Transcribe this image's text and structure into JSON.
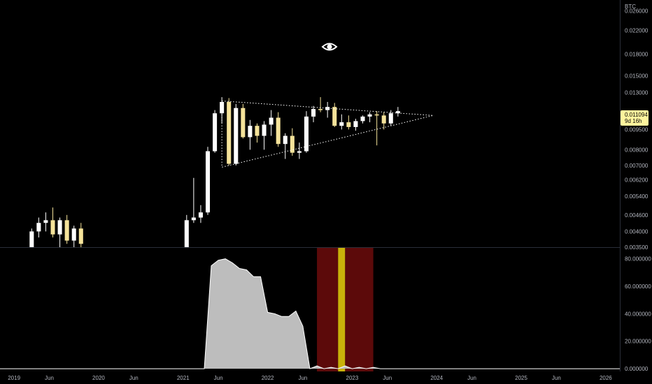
{
  "symbol_unit": "BTC",
  "colors": {
    "background": "#000000",
    "candle_up": "#ffffff",
    "candle_down": "#f5e39a",
    "triangle": "#ffffff",
    "price_badge_bg": "#fff59d",
    "price_badge_text": "#000000",
    "osc_fill": "#bdbdbd",
    "band_red": "#5c0a0a",
    "band_yellow": "#c9b20a"
  },
  "chart_data": [
    {
      "type": "candlestick",
      "ylabel": "BTC",
      "scale": "log",
      "y_ticks": [
        "0.026000",
        "0.022000",
        "0.018000",
        "0.015000",
        "0.013000",
        "0.009500",
        "0.008000",
        "0.007000",
        "0.006200",
        "0.005400",
        "0.004600",
        "0.004000",
        "0.003500"
      ],
      "y_tick_values": [
        0.026,
        0.022,
        0.018,
        0.015,
        0.013,
        0.0095,
        0.008,
        0.007,
        0.0062,
        0.0054,
        0.0046,
        0.004,
        0.0035
      ],
      "ylim": [
        0.0035,
        0.0285
      ],
      "last_price": "0.011094",
      "countdown": "9d 16h",
      "x_ticks": [
        "2019",
        "Jun",
        "2020",
        "Jun",
        "2021",
        "Jun",
        "2022",
        "Jun",
        "2023",
        "Jun",
        "2024",
        "Jun",
        "2025",
        "Jun",
        "2026"
      ],
      "x_tick_dates": [
        "2019-01",
        "2019-06",
        "2020-01",
        "2020-06",
        "2021-01",
        "2021-06",
        "2022-01",
        "2022-06",
        "2023-01",
        "2023-06",
        "2024-01",
        "2024-06",
        "2025-01",
        "2025-06",
        "2026-01"
      ],
      "xlim": [
        "2018-11",
        "2026-03"
      ],
      "candles": [
        {
          "t": "2019-03",
          "o": 0.0035,
          "h": 0.0041,
          "l": 0.0035,
          "c": 0.004
        },
        {
          "t": "2019-04",
          "o": 0.004,
          "h": 0.0045,
          "l": 0.0038,
          "c": 0.0043
        },
        {
          "t": "2019-05",
          "o": 0.0043,
          "h": 0.0047,
          "l": 0.004,
          "c": 0.0044
        },
        {
          "t": "2019-06",
          "o": 0.0044,
          "h": 0.0049,
          "l": 0.0038,
          "c": 0.0039
        },
        {
          "t": "2019-07",
          "o": 0.0039,
          "h": 0.0045,
          "l": 0.0035,
          "c": 0.0044
        },
        {
          "t": "2019-08",
          "o": 0.0044,
          "h": 0.0046,
          "l": 0.0036,
          "c": 0.0037
        },
        {
          "t": "2019-09",
          "o": 0.0037,
          "h": 0.0042,
          "l": 0.0035,
          "c": 0.0041
        },
        {
          "t": "2019-10",
          "o": 0.0041,
          "h": 0.0043,
          "l": 0.0035,
          "c": 0.0036
        },
        {
          "t": "2021-01",
          "o": 0.0035,
          "h": 0.0046,
          "l": 0.0035,
          "c": 0.0044
        },
        {
          "t": "2021-02",
          "o": 0.0044,
          "h": 0.0063,
          "l": 0.0043,
          "c": 0.0045
        },
        {
          "t": "2021-03",
          "o": 0.0045,
          "h": 0.005,
          "l": 0.0043,
          "c": 0.0047
        },
        {
          "t": "2021-04",
          "o": 0.0047,
          "h": 0.0082,
          "l": 0.0046,
          "c": 0.0079
        },
        {
          "t": "2021-05",
          "o": 0.0079,
          "h": 0.0112,
          "l": 0.0078,
          "c": 0.0109
        },
        {
          "t": "2021-06",
          "o": 0.0109,
          "h": 0.0125,
          "l": 0.01,
          "c": 0.012
        },
        {
          "t": "2021-07",
          "o": 0.012,
          "h": 0.0124,
          "l": 0.007,
          "c": 0.0071
        },
        {
          "t": "2021-08",
          "o": 0.0071,
          "h": 0.0118,
          "l": 0.007,
          "c": 0.0114
        },
        {
          "t": "2021-09",
          "o": 0.0114,
          "h": 0.0118,
          "l": 0.0088,
          "c": 0.0089
        },
        {
          "t": "2021-10",
          "o": 0.0089,
          "h": 0.0103,
          "l": 0.008,
          "c": 0.0098
        },
        {
          "t": "2021-11",
          "o": 0.0098,
          "h": 0.01,
          "l": 0.0085,
          "c": 0.009
        },
        {
          "t": "2021-12",
          "o": 0.009,
          "h": 0.0102,
          "l": 0.008,
          "c": 0.0099
        },
        {
          "t": "2022-01",
          "o": 0.0099,
          "h": 0.0112,
          "l": 0.009,
          "c": 0.0105
        },
        {
          "t": "2022-02",
          "o": 0.0105,
          "h": 0.011,
          "l": 0.0082,
          "c": 0.0084
        },
        {
          "t": "2022-03",
          "o": 0.0084,
          "h": 0.0092,
          "l": 0.0074,
          "c": 0.009
        },
        {
          "t": "2022-04",
          "o": 0.009,
          "h": 0.0096,
          "l": 0.0076,
          "c": 0.0078
        },
        {
          "t": "2022-05",
          "o": 0.0078,
          "h": 0.0085,
          "l": 0.0074,
          "c": 0.0079
        },
        {
          "t": "2022-06",
          "o": 0.0079,
          "h": 0.0111,
          "l": 0.0078,
          "c": 0.0106
        },
        {
          "t": "2022-07",
          "o": 0.0106,
          "h": 0.0116,
          "l": 0.0101,
          "c": 0.0113
        },
        {
          "t": "2022-08",
          "o": 0.0113,
          "h": 0.0125,
          "l": 0.011,
          "c": 0.0112
        },
        {
          "t": "2022-09",
          "o": 0.0112,
          "h": 0.012,
          "l": 0.0105,
          "c": 0.0115
        },
        {
          "t": "2022-10",
          "o": 0.0115,
          "h": 0.0119,
          "l": 0.0097,
          "c": 0.0098
        },
        {
          "t": "2022-11",
          "o": 0.0098,
          "h": 0.0108,
          "l": 0.0095,
          "c": 0.0101
        },
        {
          "t": "2022-12",
          "o": 0.0101,
          "h": 0.0107,
          "l": 0.0095,
          "c": 0.0097
        },
        {
          "t": "2023-01",
          "o": 0.0097,
          "h": 0.0104,
          "l": 0.0094,
          "c": 0.0102
        },
        {
          "t": "2023-02",
          "o": 0.0102,
          "h": 0.0107,
          "l": 0.01,
          "c": 0.0106
        },
        {
          "t": "2023-03",
          "o": 0.0106,
          "h": 0.011,
          "l": 0.0101,
          "c": 0.0108
        },
        {
          "t": "2023-04",
          "o": 0.0108,
          "h": 0.0111,
          "l": 0.0083,
          "c": 0.0107
        },
        {
          "t": "2023-05",
          "o": 0.0107,
          "h": 0.011,
          "l": 0.0095,
          "c": 0.01
        },
        {
          "t": "2023-06",
          "o": 0.01,
          "h": 0.0112,
          "l": 0.0098,
          "c": 0.0109
        },
        {
          "t": "2023-07",
          "o": 0.0109,
          "h": 0.0115,
          "l": 0.0106,
          "c": 0.0111
        }
      ],
      "triangle": [
        {
          "t": "2021-06",
          "p": 0.0121
        },
        {
          "t": "2023-12",
          "p": 0.0107
        },
        {
          "t": "2021-06",
          "p": 0.0069
        }
      ]
    },
    {
      "type": "area",
      "y_ticks": [
        "80.000000",
        "60.000000",
        "40.000000",
        "20.000000",
        "0.000000"
      ],
      "y_tick_values": [
        80,
        60,
        40,
        20,
        0
      ],
      "ylim": [
        -2,
        88
      ],
      "points": [
        {
          "t": "2018-11",
          "v": 0
        },
        {
          "t": "2021-04",
          "v": 0
        },
        {
          "t": "2021-05",
          "v": 75
        },
        {
          "t": "2021-06",
          "v": 79
        },
        {
          "t": "2021-07",
          "v": 80
        },
        {
          "t": "2021-08",
          "v": 77
        },
        {
          "t": "2021-09",
          "v": 73
        },
        {
          "t": "2021-10",
          "v": 72
        },
        {
          "t": "2021-11",
          "v": 67
        },
        {
          "t": "2021-12",
          "v": 67
        },
        {
          "t": "2022-01",
          "v": 41
        },
        {
          "t": "2022-02",
          "v": 40
        },
        {
          "t": "2022-03",
          "v": 38
        },
        {
          "t": "2022-04",
          "v": 38
        },
        {
          "t": "2022-05",
          "v": 42
        },
        {
          "t": "2022-06",
          "v": 31
        },
        {
          "t": "2022-07",
          "v": 0
        },
        {
          "t": "2022-08",
          "v": 2
        },
        {
          "t": "2022-09",
          "v": 0
        },
        {
          "t": "2022-10",
          "v": 1
        },
        {
          "t": "2022-11",
          "v": 0
        },
        {
          "t": "2022-12",
          "v": 2
        },
        {
          "t": "2023-01",
          "v": 0
        },
        {
          "t": "2023-02",
          "v": 1
        },
        {
          "t": "2023-03",
          "v": 0
        },
        {
          "t": "2023-04",
          "v": 1
        },
        {
          "t": "2023-05",
          "v": 0
        },
        {
          "t": "2023-06",
          "v": 0
        },
        {
          "t": "2023-07",
          "v": 0
        },
        {
          "t": "2026-03",
          "v": 0
        }
      ],
      "bands": [
        {
          "from": "2022-08",
          "to": "2022-11",
          "color": "red"
        },
        {
          "from": "2022-11",
          "to": "2022-12",
          "color": "yellow"
        },
        {
          "from": "2022-12",
          "to": "2023-04",
          "color": "red"
        }
      ]
    }
  ]
}
